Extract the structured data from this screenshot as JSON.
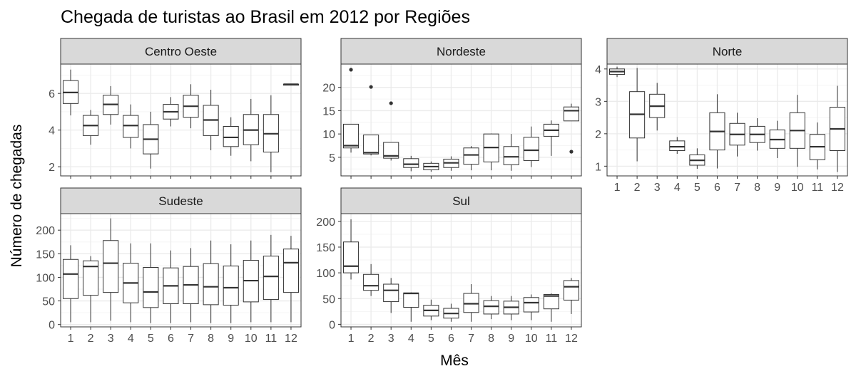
{
  "chart_data": {
    "type": "boxplot",
    "title": "Chegada de turistas ao Brasil em 2012 por Regiões",
    "xlabel": "Mês",
    "ylabel": "Número de chegadas",
    "categories": [
      "1",
      "2",
      "3",
      "4",
      "5",
      "6",
      "7",
      "8",
      "9",
      "10",
      "11",
      "12"
    ],
    "grid": true,
    "facets": [
      {
        "name": "Centro Oeste",
        "ylim": [
          1.5,
          7.6
        ],
        "yticks": [
          2,
          4,
          6
        ],
        "boxes": [
          {
            "month": "1",
            "low": 4.8,
            "q1": 5.45,
            "median": 6.05,
            "q3": 6.7,
            "high": 7.3,
            "outliers": []
          },
          {
            "month": "2",
            "low": 3.2,
            "q1": 3.7,
            "median": 4.25,
            "q3": 4.8,
            "high": 5.1,
            "outliers": []
          },
          {
            "month": "3",
            "low": 4.3,
            "q1": 4.85,
            "median": 5.4,
            "q3": 5.9,
            "high": 6.4,
            "outliers": []
          },
          {
            "month": "4",
            "low": 3.0,
            "q1": 3.6,
            "median": 4.25,
            "q3": 4.8,
            "high": 5.4,
            "outliers": []
          },
          {
            "month": "5",
            "low": 1.9,
            "q1": 2.7,
            "median": 3.5,
            "q3": 4.3,
            "high": 5.0,
            "outliers": []
          },
          {
            "month": "6",
            "low": 4.2,
            "q1": 4.6,
            "median": 5.0,
            "q3": 5.4,
            "high": 5.8,
            "outliers": []
          },
          {
            "month": "7",
            "low": 4.1,
            "q1": 4.7,
            "median": 5.3,
            "q3": 5.9,
            "high": 6.5,
            "outliers": []
          },
          {
            "month": "8",
            "low": 2.9,
            "q1": 3.7,
            "median": 4.55,
            "q3": 5.35,
            "high": 6.2,
            "outliers": []
          },
          {
            "month": "9",
            "low": 2.6,
            "q1": 3.1,
            "median": 3.6,
            "q3": 4.2,
            "high": 4.7,
            "outliers": []
          },
          {
            "month": "10",
            "low": 2.3,
            "q1": 3.2,
            "median": 4.0,
            "q3": 4.85,
            "high": 5.7,
            "outliers": []
          },
          {
            "month": "11",
            "low": 1.7,
            "q1": 2.8,
            "median": 3.8,
            "q3": 4.85,
            "high": 5.9,
            "outliers": []
          },
          {
            "month": "12",
            "low": 6.45,
            "q1": 6.45,
            "median": 6.5,
            "q3": 6.5,
            "high": 6.5,
            "outliers": []
          }
        ]
      },
      {
        "name": "Nordeste",
        "ylim": [
          1.0,
          25.0
        ],
        "yticks": [
          5,
          10,
          15,
          20
        ],
        "boxes": [
          {
            "month": "1",
            "low": 6.0,
            "q1": 7.0,
            "median": 7.5,
            "q3": 12.1,
            "high": 12.1,
            "outliers": [
              23.8
            ]
          },
          {
            "month": "2",
            "low": 5.4,
            "q1": 5.7,
            "median": 6.0,
            "q3": 9.8,
            "high": 9.8,
            "outliers": [
              20.1
            ]
          },
          {
            "month": "3",
            "low": 4.3,
            "q1": 4.8,
            "median": 5.3,
            "q3": 8.2,
            "high": 8.2,
            "outliers": [
              16.6
            ]
          },
          {
            "month": "4",
            "low": 2.0,
            "q1": 2.8,
            "median": 3.5,
            "q3": 4.7,
            "high": 5.3,
            "outliers": []
          },
          {
            "month": "5",
            "low": 1.9,
            "q1": 2.3,
            "median": 3.0,
            "q3": 3.7,
            "high": 4.1,
            "outliers": []
          },
          {
            "month": "6",
            "low": 2.1,
            "q1": 2.8,
            "median": 3.8,
            "q3": 4.6,
            "high": 5.2,
            "outliers": []
          },
          {
            "month": "7",
            "low": 2.2,
            "q1": 3.5,
            "median": 5.5,
            "q3": 7.0,
            "high": 7.4,
            "outliers": []
          },
          {
            "month": "8",
            "low": 2.2,
            "q1": 4.0,
            "median": 7.1,
            "q3": 10.0,
            "high": 10.1,
            "outliers": []
          },
          {
            "month": "9",
            "low": 2.1,
            "q1": 3.4,
            "median": 5.1,
            "q3": 7.3,
            "high": 10.0,
            "outliers": []
          },
          {
            "month": "10",
            "low": 2.9,
            "q1": 4.3,
            "median": 6.5,
            "q3": 9.3,
            "high": 11.6,
            "outliers": []
          },
          {
            "month": "11",
            "low": 5.3,
            "q1": 9.5,
            "median": 10.8,
            "q3": 12.1,
            "high": 12.9,
            "outliers": []
          },
          {
            "month": "12",
            "low": 12.8,
            "q1": 12.8,
            "median": 15.0,
            "q3": 15.8,
            "high": 16.5,
            "outliers": [
              6.2
            ]
          }
        ]
      },
      {
        "name": "Norte",
        "ylim": [
          0.7,
          4.15
        ],
        "yticks": [
          1,
          2,
          3,
          4
        ],
        "boxes": [
          {
            "month": "1",
            "low": 3.75,
            "q1": 3.83,
            "median": 3.92,
            "q3": 4.0,
            "high": 4.07,
            "outliers": []
          },
          {
            "month": "2",
            "low": 1.15,
            "q1": 1.87,
            "median": 2.6,
            "q3": 3.3,
            "high": 4.03,
            "outliers": []
          },
          {
            "month": "3",
            "low": 2.1,
            "q1": 2.5,
            "median": 2.85,
            "q3": 3.22,
            "high": 3.57,
            "outliers": []
          },
          {
            "month": "4",
            "low": 1.38,
            "q1": 1.48,
            "median": 1.6,
            "q3": 1.78,
            "high": 1.9,
            "outliers": []
          },
          {
            "month": "5",
            "low": 0.92,
            "q1": 1.03,
            "median": 1.18,
            "q3": 1.35,
            "high": 1.55,
            "outliers": []
          },
          {
            "month": "6",
            "low": 0.93,
            "q1": 1.5,
            "median": 2.07,
            "q3": 2.65,
            "high": 3.22,
            "outliers": []
          },
          {
            "month": "7",
            "low": 1.3,
            "q1": 1.65,
            "median": 1.98,
            "q3": 2.32,
            "high": 2.65,
            "outliers": []
          },
          {
            "month": "8",
            "low": 1.48,
            "q1": 1.73,
            "median": 1.98,
            "q3": 2.23,
            "high": 2.48,
            "outliers": []
          },
          {
            "month": "9",
            "low": 1.25,
            "q1": 1.55,
            "median": 1.82,
            "q3": 2.12,
            "high": 2.4,
            "outliers": []
          },
          {
            "month": "10",
            "low": 0.98,
            "q1": 1.55,
            "median": 2.1,
            "q3": 2.65,
            "high": 3.2,
            "outliers": []
          },
          {
            "month": "11",
            "low": 0.9,
            "q1": 1.2,
            "median": 1.6,
            "q3": 1.98,
            "high": 2.35,
            "outliers": []
          },
          {
            "month": "12",
            "low": 0.82,
            "q1": 1.48,
            "median": 2.15,
            "q3": 2.82,
            "high": 3.48,
            "outliers": []
          }
        ]
      },
      {
        "name": "Sudeste",
        "ylim": [
          -5,
          235
        ],
        "yticks": [
          0,
          50,
          100,
          150,
          200
        ],
        "boxes": [
          {
            "month": "1",
            "low": 5,
            "q1": 55,
            "median": 107,
            "q3": 138,
            "high": 168,
            "outliers": []
          },
          {
            "month": "2",
            "low": 5,
            "q1": 62,
            "median": 123,
            "q3": 135,
            "high": 145,
            "outliers": []
          },
          {
            "month": "3",
            "low": 8,
            "q1": 68,
            "median": 130,
            "q3": 178,
            "high": 225,
            "outliers": []
          },
          {
            "month": "4",
            "low": 5,
            "q1": 46,
            "median": 88,
            "q3": 130,
            "high": 172,
            "outliers": []
          },
          {
            "month": "5",
            "low": 3,
            "q1": 36,
            "median": 69,
            "q3": 121,
            "high": 172,
            "outliers": []
          },
          {
            "month": "6",
            "low": 3,
            "q1": 44,
            "median": 82,
            "q3": 120,
            "high": 157,
            "outliers": []
          },
          {
            "month": "7",
            "low": 5,
            "q1": 44,
            "median": 84,
            "q3": 123,
            "high": 162,
            "outliers": []
          },
          {
            "month": "8",
            "low": 3,
            "q1": 42,
            "median": 80,
            "q3": 129,
            "high": 178,
            "outliers": []
          },
          {
            "month": "9",
            "low": 3,
            "q1": 41,
            "median": 78,
            "q3": 124,
            "high": 170,
            "outliers": []
          },
          {
            "month": "10",
            "low": 5,
            "q1": 48,
            "median": 93,
            "q3": 136,
            "high": 178,
            "outliers": []
          },
          {
            "month": "11",
            "low": 5,
            "q1": 53,
            "median": 102,
            "q3": 145,
            "high": 190,
            "outliers": []
          },
          {
            "month": "12",
            "low": 5,
            "q1": 68,
            "median": 131,
            "q3": 160,
            "high": 188,
            "outliers": []
          }
        ]
      },
      {
        "name": "Sul",
        "ylim": [
          -5,
          215
        ],
        "yticks": [
          0,
          50,
          100,
          150,
          200
        ],
        "boxes": [
          {
            "month": "1",
            "low": 87,
            "q1": 100,
            "median": 113,
            "q3": 160,
            "high": 204,
            "outliers": []
          },
          {
            "month": "2",
            "low": 55,
            "q1": 66,
            "median": 75,
            "q3": 97,
            "high": 117,
            "outliers": []
          },
          {
            "month": "3",
            "low": 22,
            "q1": 44,
            "median": 66,
            "q3": 78,
            "high": 90,
            "outliers": []
          },
          {
            "month": "4",
            "low": 5,
            "q1": 33,
            "median": 60,
            "q3": 61,
            "high": 62,
            "outliers": []
          },
          {
            "month": "5",
            "low": 8,
            "q1": 16,
            "median": 27,
            "q3": 37,
            "high": 48,
            "outliers": []
          },
          {
            "month": "6",
            "low": 5,
            "q1": 12,
            "median": 21,
            "q3": 31,
            "high": 40,
            "outliers": []
          },
          {
            "month": "7",
            "low": 5,
            "q1": 23,
            "median": 40,
            "q3": 60,
            "high": 78,
            "outliers": []
          },
          {
            "month": "8",
            "low": 10,
            "q1": 20,
            "median": 35,
            "q3": 46,
            "high": 55,
            "outliers": []
          },
          {
            "month": "9",
            "low": 8,
            "q1": 20,
            "median": 33,
            "q3": 45,
            "high": 55,
            "outliers": []
          },
          {
            "month": "10",
            "low": 8,
            "q1": 24,
            "median": 42,
            "q3": 52,
            "high": 58,
            "outliers": []
          },
          {
            "month": "11",
            "low": 5,
            "q1": 30,
            "median": 55,
            "q3": 58,
            "high": 60,
            "outliers": []
          },
          {
            "month": "12",
            "low": 20,
            "q1": 47,
            "median": 73,
            "q3": 85,
            "high": 90,
            "outliers": []
          }
        ]
      }
    ]
  },
  "colors": {
    "panel_background": "#ffffff",
    "panel_border": "#333333",
    "grid_major": "#ebebeb",
    "grid_minor": "#f5f5f5",
    "strip_fill": "#d9d9d9",
    "box_fill": "#ffffff",
    "box_stroke": "#333333",
    "tick_text": "#4d4d4d",
    "title_text": "#000000"
  }
}
